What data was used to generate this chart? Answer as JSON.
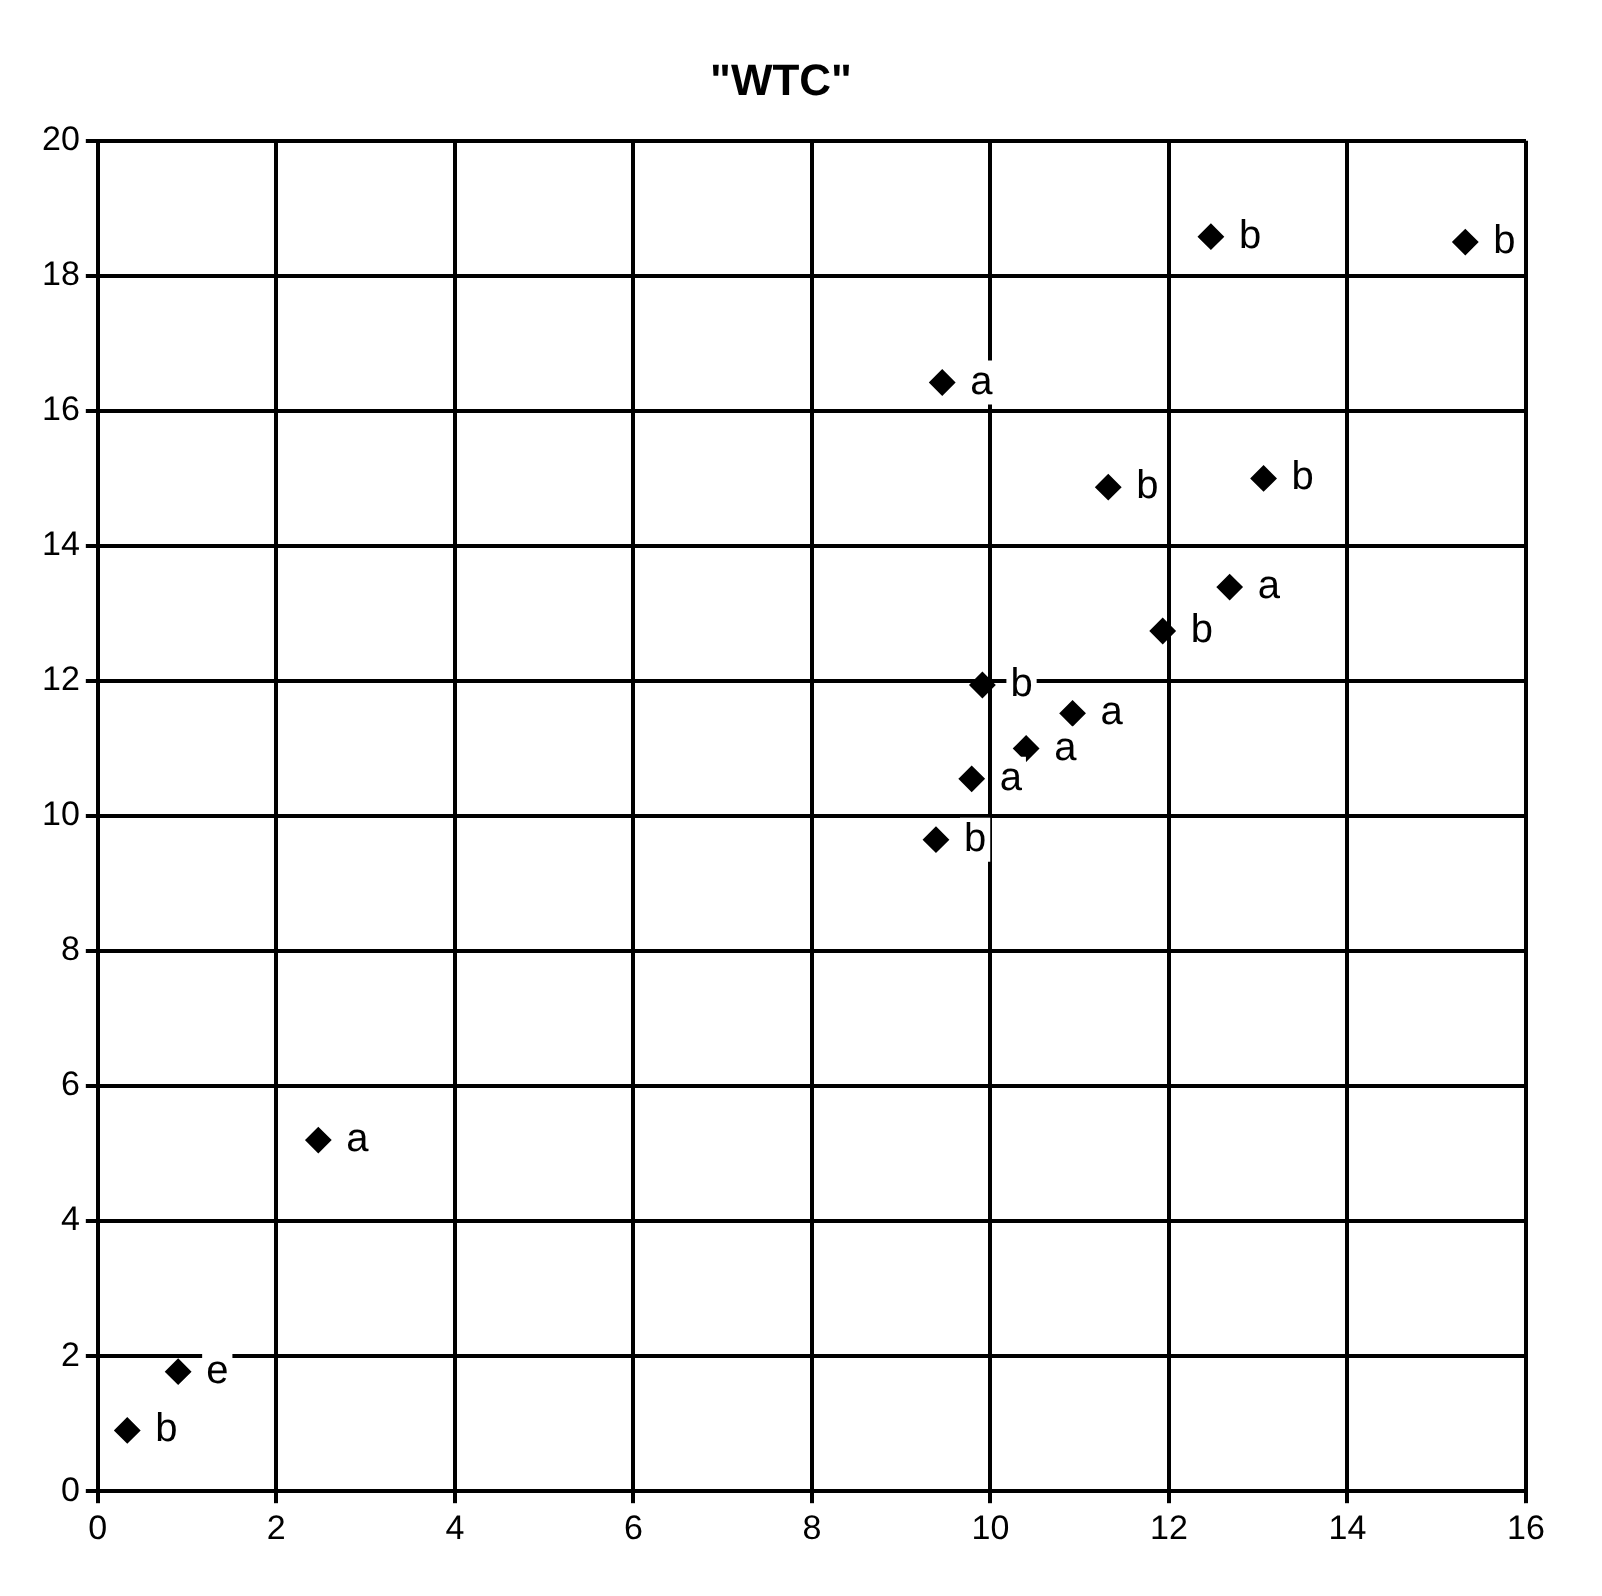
{
  "chart_data": {
    "type": "scatter",
    "title": "\"WTC\"",
    "x": [
      0.33,
      0.9,
      2.47,
      9.39,
      9.79,
      9.91,
      10.4,
      10.92,
      11.93,
      12.68,
      11.32,
      13.06,
      9.46,
      12.47,
      15.32
    ],
    "series": [
      {
        "color": "#000000",
        "values": [
          0.9,
          1.77,
          5.2,
          9.65,
          10.55,
          11.94,
          11.0,
          11.52,
          12.74,
          13.39,
          14.87,
          15.0,
          16.42,
          18.58,
          18.5
        ]
      }
    ],
    "annotations": [
      {
        "text": "b",
        "x": 0.33,
        "y": 0.9
      },
      {
        "text": "e",
        "x": 0.9,
        "y": 1.77
      },
      {
        "text": "a",
        "x": 2.47,
        "y": 5.2
      },
      {
        "text": "b",
        "x": 9.39,
        "y": 9.65
      },
      {
        "text": "a",
        "x": 9.79,
        "y": 10.55
      },
      {
        "text": "b",
        "x": 9.91,
        "y": 11.94
      },
      {
        "text": "a",
        "x": 10.4,
        "y": 11.0
      },
      {
        "text": "a",
        "x": 10.92,
        "y": 11.52
      },
      {
        "text": "b",
        "x": 11.93,
        "y": 12.74
      },
      {
        "text": "a",
        "x": 12.68,
        "y": 13.39
      },
      {
        "text": "b",
        "x": 11.32,
        "y": 14.87
      },
      {
        "text": "b",
        "x": 13.06,
        "y": 15.0
      },
      {
        "text": "a",
        "x": 9.46,
        "y": 16.42
      },
      {
        "text": "b",
        "x": 12.47,
        "y": 18.58
      },
      {
        "text": "b",
        "x": 15.32,
        "y": 18.5
      }
    ],
    "xlim": [
      0,
      16
    ],
    "xticks": [
      0,
      2,
      4,
      6,
      8,
      10,
      12,
      14,
      16
    ],
    "ylim": [
      0,
      20
    ],
    "yticks": [
      0,
      2,
      4,
      6,
      8,
      10,
      12,
      14,
      16,
      18,
      20
    ],
    "grid": true,
    "legend": false,
    "marker": "diamond"
  }
}
